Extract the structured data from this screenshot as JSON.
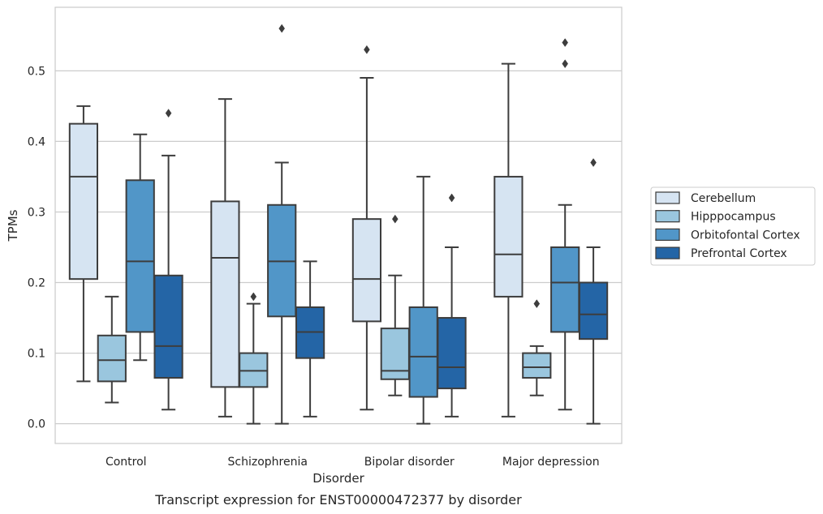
{
  "caption": "Transcript expression for ENST00000472377 by disorder",
  "chart_data": {
    "type": "box",
    "xlabel": "Disorder",
    "ylabel": "TPMs",
    "ylim": [
      -0.028,
      0.59
    ],
    "y_ticks": [
      "0.0",
      "0.1",
      "0.2",
      "0.3",
      "0.4",
      "0.5"
    ],
    "grid": "horizontal",
    "legend_position": "right",
    "categories": [
      "Control",
      "Schizophrenia",
      "Bipolar disorder",
      "Major depression"
    ],
    "series": [
      {
        "name": "Cerebellum",
        "color": "#d6e4f2",
        "boxes": [
          {
            "q1": 0.205,
            "median": 0.35,
            "q3": 0.425,
            "whisker_low": 0.06,
            "whisker_high": 0.45,
            "outliers": []
          },
          {
            "q1": 0.052,
            "median": 0.235,
            "q3": 0.315,
            "whisker_low": 0.01,
            "whisker_high": 0.46,
            "outliers": []
          },
          {
            "q1": 0.145,
            "median": 0.205,
            "q3": 0.29,
            "whisker_low": 0.02,
            "whisker_high": 0.49,
            "outliers": [
              0.53
            ]
          },
          {
            "q1": 0.18,
            "median": 0.24,
            "q3": 0.35,
            "whisker_low": 0.01,
            "whisker_high": 0.51,
            "outliers": []
          }
        ]
      },
      {
        "name": "Hipppocampus",
        "color": "#9ac6de",
        "boxes": [
          {
            "q1": 0.06,
            "median": 0.09,
            "q3": 0.125,
            "whisker_low": 0.03,
            "whisker_high": 0.18,
            "outliers": []
          },
          {
            "q1": 0.052,
            "median": 0.075,
            "q3": 0.1,
            "whisker_low": 0.0,
            "whisker_high": 0.17,
            "outliers": [
              0.18
            ]
          },
          {
            "q1": 0.063,
            "median": 0.075,
            "q3": 0.135,
            "whisker_low": 0.04,
            "whisker_high": 0.21,
            "outliers": [
              0.29
            ]
          },
          {
            "q1": 0.065,
            "median": 0.08,
            "q3": 0.1,
            "whisker_low": 0.04,
            "whisker_high": 0.11,
            "outliers": [
              0.17
            ]
          }
        ]
      },
      {
        "name": "Orbitofontal Cortex",
        "color": "#5196c8",
        "boxes": [
          {
            "q1": 0.13,
            "median": 0.23,
            "q3": 0.345,
            "whisker_low": 0.09,
            "whisker_high": 0.41,
            "outliers": []
          },
          {
            "q1": 0.152,
            "median": 0.23,
            "q3": 0.31,
            "whisker_low": 0.0,
            "whisker_high": 0.37,
            "outliers": [
              0.56
            ]
          },
          {
            "q1": 0.038,
            "median": 0.095,
            "q3": 0.165,
            "whisker_low": 0.0,
            "whisker_high": 0.35,
            "outliers": []
          },
          {
            "q1": 0.13,
            "median": 0.2,
            "q3": 0.25,
            "whisker_low": 0.02,
            "whisker_high": 0.31,
            "outliers": [
              0.51,
              0.54
            ]
          }
        ]
      },
      {
        "name": "Prefrontal Cortex",
        "color": "#2465a6",
        "boxes": [
          {
            "q1": 0.065,
            "median": 0.11,
            "q3": 0.21,
            "whisker_low": 0.02,
            "whisker_high": 0.38,
            "outliers": [
              0.44
            ]
          },
          {
            "q1": 0.093,
            "median": 0.13,
            "q3": 0.165,
            "whisker_low": 0.01,
            "whisker_high": 0.23,
            "outliers": []
          },
          {
            "q1": 0.05,
            "median": 0.08,
            "q3": 0.15,
            "whisker_low": 0.01,
            "whisker_high": 0.25,
            "outliers": [
              0.32
            ]
          },
          {
            "q1": 0.12,
            "median": 0.155,
            "q3": 0.2,
            "whisker_low": 0.0,
            "whisker_high": 0.25,
            "outliers": [
              0.37
            ]
          }
        ]
      }
    ]
  }
}
